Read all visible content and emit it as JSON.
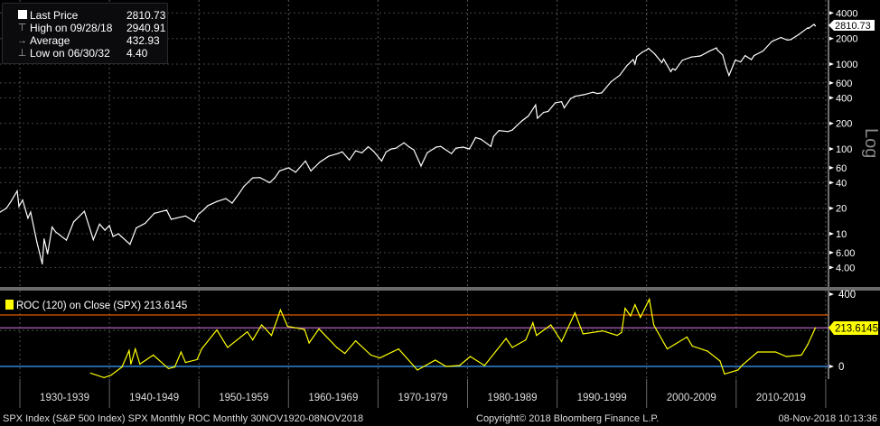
{
  "legend": {
    "items": [
      {
        "label": "Last Price",
        "value": "2810.73",
        "icon": "white-square-icon"
      },
      {
        "label": "High on 09/28/18",
        "value": "2940.91",
        "icon": "high-marker-icon"
      },
      {
        "label": "Average",
        "value": "432.93",
        "icon": "average-marker-icon"
      },
      {
        "label": "Low on 06/30/32",
        "value": "4.40",
        "icon": "low-marker-icon"
      }
    ]
  },
  "price_axis_label": "Log",
  "last_price_tag": "2810.73",
  "roc_legend": {
    "label": "ROC (120) on Close (SPX)",
    "value": "213.6145"
  },
  "roc_last_tag": "213.6145",
  "footer": {
    "left": "SPX Index (S&P 500 Index) SPX Monthly ROC  Monthly 30NOV1920-08NOV2018",
    "center": "Copyright© 2018 Bloomberg Finance L.P.",
    "right": "08-Nov-2018 10:13:36"
  },
  "colors": {
    "price": "#ffffff",
    "roc": "#ffff00",
    "zero_line": "#3fa0ff",
    "upper_line": "#e05a00",
    "last_line": "#b060c0",
    "background": "#000000"
  },
  "chart_data": [
    {
      "type": "line",
      "name": "SPX Last Price",
      "yscale": "log",
      "ylim": [
        3.5,
        5000
      ],
      "xlim": [
        1927.8,
        2020.5
      ],
      "y_ticks": [
        "4000",
        "2000",
        "1000",
        "600",
        "400",
        "200",
        "100",
        "60",
        "40",
        "20",
        "10",
        "6.00",
        "4.00"
      ],
      "y_tick_values": [
        4000,
        2000,
        1000,
        600,
        400,
        200,
        100,
        60,
        40,
        20,
        10,
        6,
        4
      ],
      "grid": true,
      "legend": "top-left",
      "points": [
        [
          1927.8,
          18
        ],
        [
          1928.5,
          20
        ],
        [
          1929.0,
          24
        ],
        [
          1929.7,
          31.9
        ],
        [
          1929.9,
          21
        ],
        [
          1930.3,
          25
        ],
        [
          1930.9,
          15.3
        ],
        [
          1931.2,
          18
        ],
        [
          1931.9,
          8
        ],
        [
          1932.5,
          4.4
        ],
        [
          1932.7,
          8.7
        ],
        [
          1933.1,
          5.8
        ],
        [
          1933.6,
          12
        ],
        [
          1934.0,
          10.5
        ],
        [
          1935.2,
          8.4
        ],
        [
          1936.0,
          13.8
        ],
        [
          1937.2,
          18.4
        ],
        [
          1938.2,
          8.5
        ],
        [
          1938.9,
          13
        ],
        [
          1939.5,
          11
        ],
        [
          1940.0,
          12.5
        ],
        [
          1940.4,
          9.3
        ],
        [
          1941.0,
          10
        ],
        [
          1942.3,
          7.5
        ],
        [
          1943.0,
          11.7
        ],
        [
          1944.0,
          13.3
        ],
        [
          1945.0,
          17.4
        ],
        [
          1946.4,
          19
        ],
        [
          1946.9,
          14.8
        ],
        [
          1947.5,
          15.3
        ],
        [
          1948.5,
          16.2
        ],
        [
          1949.5,
          13.9
        ],
        [
          1949.9,
          16.8
        ],
        [
          1950.5,
          19
        ],
        [
          1951.0,
          21.5
        ],
        [
          1952.0,
          24
        ],
        [
          1953.0,
          26
        ],
        [
          1953.7,
          23
        ],
        [
          1954.5,
          30
        ],
        [
          1955.0,
          36
        ],
        [
          1956.0,
          45.5
        ],
        [
          1956.8,
          46
        ],
        [
          1957.9,
          40
        ],
        [
          1958.5,
          46
        ],
        [
          1959.0,
          55
        ],
        [
          1960.0,
          59.9
        ],
        [
          1960.8,
          53
        ],
        [
          1961.9,
          72
        ],
        [
          1962.5,
          55
        ],
        [
          1963.5,
          70
        ],
        [
          1964.5,
          82
        ],
        [
          1965.5,
          88
        ],
        [
          1966.0,
          92.4
        ],
        [
          1966.8,
          74
        ],
        [
          1967.5,
          95
        ],
        [
          1968.2,
          90
        ],
        [
          1968.9,
          106
        ],
        [
          1969.5,
          94
        ],
        [
          1970.4,
          72
        ],
        [
          1970.9,
          92
        ],
        [
          1971.5,
          100
        ],
        [
          1972.0,
          102
        ],
        [
          1972.9,
          118
        ],
        [
          1973.5,
          105
        ],
        [
          1974.0,
          97.5
        ],
        [
          1974.8,
          63
        ],
        [
          1975.5,
          90
        ],
        [
          1976.5,
          105
        ],
        [
          1977.0,
          107
        ],
        [
          1978.2,
          88
        ],
        [
          1978.7,
          102
        ],
        [
          1979.5,
          105
        ],
        [
          1980.2,
          100
        ],
        [
          1980.9,
          136
        ],
        [
          1981.5,
          130
        ],
        [
          1982.6,
          107
        ],
        [
          1982.9,
          140
        ],
        [
          1983.5,
          165
        ],
        [
          1984.5,
          160
        ],
        [
          1985.0,
          167
        ],
        [
          1986.0,
          211
        ],
        [
          1986.8,
          245
        ],
        [
          1987.6,
          330
        ],
        [
          1987.8,
          230
        ],
        [
          1988.5,
          270
        ],
        [
          1989.0,
          277
        ],
        [
          1989.8,
          350
        ],
        [
          1990.5,
          360
        ],
        [
          1990.8,
          305
        ],
        [
          1991.5,
          390
        ],
        [
          1992.0,
          417
        ],
        [
          1993.0,
          436
        ],
        [
          1994.0,
          466
        ],
        [
          1994.5,
          450
        ],
        [
          1995.0,
          459
        ],
        [
          1996.0,
          616
        ],
        [
          1997.0,
          740
        ],
        [
          1997.8,
          960
        ],
        [
          1998.5,
          1130
        ],
        [
          1998.7,
          1000
        ],
        [
          1998.9,
          1229
        ],
        [
          1999.5,
          1380
        ],
        [
          2000.0,
          1469
        ],
        [
          2000.2,
          1530
        ],
        [
          2000.9,
          1320
        ],
        [
          2001.7,
          1040
        ],
        [
          2001.9,
          1148
        ],
        [
          2002.7,
          815
        ],
        [
          2002.9,
          880
        ],
        [
          2003.2,
          850
        ],
        [
          2004.0,
          1112
        ],
        [
          2005.0,
          1212
        ],
        [
          2006.0,
          1248
        ],
        [
          2007.0,
          1418
        ],
        [
          2007.8,
          1550
        ],
        [
          2007.9,
          1468
        ],
        [
          2008.5,
          1280
        ],
        [
          2008.9,
          903
        ],
        [
          2009.2,
          735
        ],
        [
          2009.9,
          1115
        ],
        [
          2010.5,
          1060
        ],
        [
          2011.0,
          1258
        ],
        [
          2011.7,
          1130
        ],
        [
          2012.0,
          1258
        ],
        [
          2013.0,
          1426
        ],
        [
          2014.0,
          1848
        ],
        [
          2015.0,
          2059
        ],
        [
          2015.7,
          1920
        ],
        [
          2016.1,
          1940
        ],
        [
          2017.0,
          2239
        ],
        [
          2018.0,
          2674
        ],
        [
          2018.1,
          2640
        ],
        [
          2018.7,
          2940
        ],
        [
          2018.85,
          2810.73
        ]
      ]
    },
    {
      "type": "line",
      "name": "ROC (120) on Close (SPX)",
      "ylim": [
        -150,
        430
      ],
      "y_ticks": [
        "400",
        "0"
      ],
      "y_tick_values": [
        400,
        0
      ],
      "reference_lines": [
        0,
        285,
        213.6145
      ],
      "x_tick_labels": [
        "1930-1939",
        "1940-1949",
        "1950-1959",
        "1960-1969",
        "1970-1979",
        "1980-1989",
        "1990-1999",
        "2000-2009",
        "2010-2019"
      ],
      "points": [
        [
          1937.9,
          -37
        ],
        [
          1939.4,
          -62
        ],
        [
          1940.2,
          -48
        ],
        [
          1941.4,
          -3
        ],
        [
          1942.2,
          88
        ],
        [
          1942.4,
          13
        ],
        [
          1942.9,
          97
        ],
        [
          1943.4,
          13
        ],
        [
          1944.9,
          63
        ],
        [
          1946.6,
          -12
        ],
        [
          1947.3,
          -3
        ],
        [
          1948.0,
          80
        ],
        [
          1948.5,
          22
        ],
        [
          1949.8,
          38
        ],
        [
          1950.3,
          97
        ],
        [
          1952.0,
          202
        ],
        [
          1953.2,
          105
        ],
        [
          1955.4,
          192
        ],
        [
          1956.0,
          147
        ],
        [
          1957.0,
          230
        ],
        [
          1958.1,
          172
        ],
        [
          1959.1,
          313
        ],
        [
          1959.9,
          222
        ],
        [
          1961.8,
          205
        ],
        [
          1962.3,
          130
        ],
        [
          1963.4,
          208
        ],
        [
          1965.4,
          105
        ],
        [
          1966.3,
          72
        ],
        [
          1967.5,
          142
        ],
        [
          1969.2,
          63
        ],
        [
          1970.2,
          47
        ],
        [
          1972.3,
          97
        ],
        [
          1974.4,
          -20
        ],
        [
          1976.4,
          35
        ],
        [
          1977.6,
          0
        ],
        [
          1979.1,
          5
        ],
        [
          1980.3,
          55
        ],
        [
          1981.9,
          5
        ],
        [
          1984.3,
          155
        ],
        [
          1985.0,
          105
        ],
        [
          1986.5,
          147
        ],
        [
          1987.3,
          242
        ],
        [
          1987.7,
          172
        ],
        [
          1989.3,
          230
        ],
        [
          1990.5,
          138
        ],
        [
          1992.0,
          297
        ],
        [
          1992.9,
          180
        ],
        [
          1995.1,
          197
        ],
        [
          1996.7,
          172
        ],
        [
          1997.2,
          188
        ],
        [
          1997.6,
          322
        ],
        [
          1998.2,
          280
        ],
        [
          1998.7,
          342
        ],
        [
          1999.3,
          272
        ],
        [
          2000.3,
          372
        ],
        [
          2000.8,
          230
        ],
        [
          2002.3,
          97
        ],
        [
          2004.5,
          163
        ],
        [
          2005.1,
          113
        ],
        [
          2006.8,
          85
        ],
        [
          2008.2,
          30
        ],
        [
          2008.7,
          -42
        ],
        [
          2010.2,
          -20
        ],
        [
          2010.7,
          8
        ],
        [
          2012.4,
          80
        ],
        [
          2014.4,
          80
        ],
        [
          2015.6,
          55
        ],
        [
          2017.3,
          63
        ],
        [
          2018.0,
          122
        ],
        [
          2018.85,
          213.6145
        ]
      ]
    }
  ]
}
